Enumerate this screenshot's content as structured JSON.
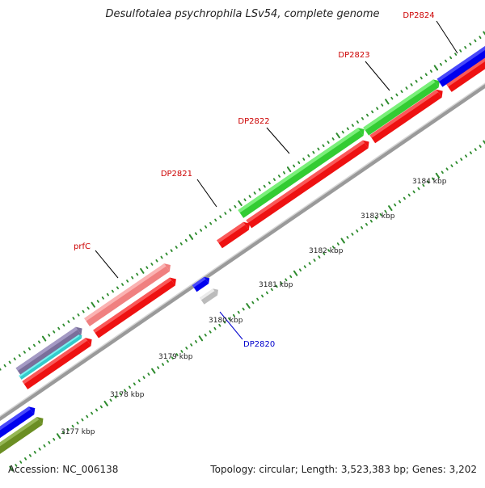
{
  "title": "Desulfotalea psychrophila LSv54, complete genome",
  "footer": {
    "accession": "Accession: NC_006138",
    "summary": "Topology: circular; Length: 3,523,383 bp; Genes: 3,202"
  },
  "colors": {
    "backbone": "#8c8c8c",
    "tick": "#2e8b2e",
    "label_red": "#cc0000",
    "label_blue": "#0000cc"
  },
  "scale_labels": [
    "3177 kbp",
    "3178 kbp",
    "3179 kbp",
    "3180 kbp",
    "3181 kbp",
    "3182 kbp",
    "3183 kbp",
    "3184 kbp"
  ],
  "gene_labels": [
    {
      "name": "prfC",
      "color": "red"
    },
    {
      "name": "DP2820",
      "color": "blue"
    },
    {
      "name": "DP2821",
      "color": "red"
    },
    {
      "name": "DP2822",
      "color": "red"
    },
    {
      "name": "DP2823",
      "color": "red"
    },
    {
      "name": "DP2824",
      "color": "red"
    }
  ]
}
